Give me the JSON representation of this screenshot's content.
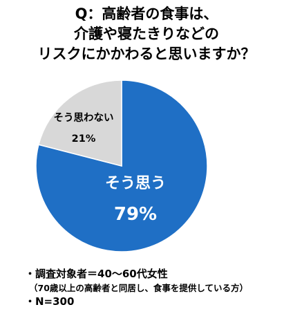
{
  "title_lines": [
    "Q：高齢者の食事は、",
    "介護や寝たきりなどの",
    "リスクにかかわると思いますか？"
  ],
  "notes": [
    "・調査対象者＝40～60代女性",
    "（70歳以上の高齢者と同居し、食事を提供している方）",
    "・N=300"
  ],
  "chart_data": {
    "type": "pie",
    "title": "Q：高齢者の食事は、介護や寝たきりなどのリスクにかかわると思いますか？",
    "slices": [
      {
        "label": "そう思う",
        "value": 79,
        "value_label": "79%",
        "color": "#1f6fc5"
      },
      {
        "label": "そう思わない",
        "value": 21,
        "value_label": "21%",
        "color": "#d8d8d8"
      }
    ]
  }
}
